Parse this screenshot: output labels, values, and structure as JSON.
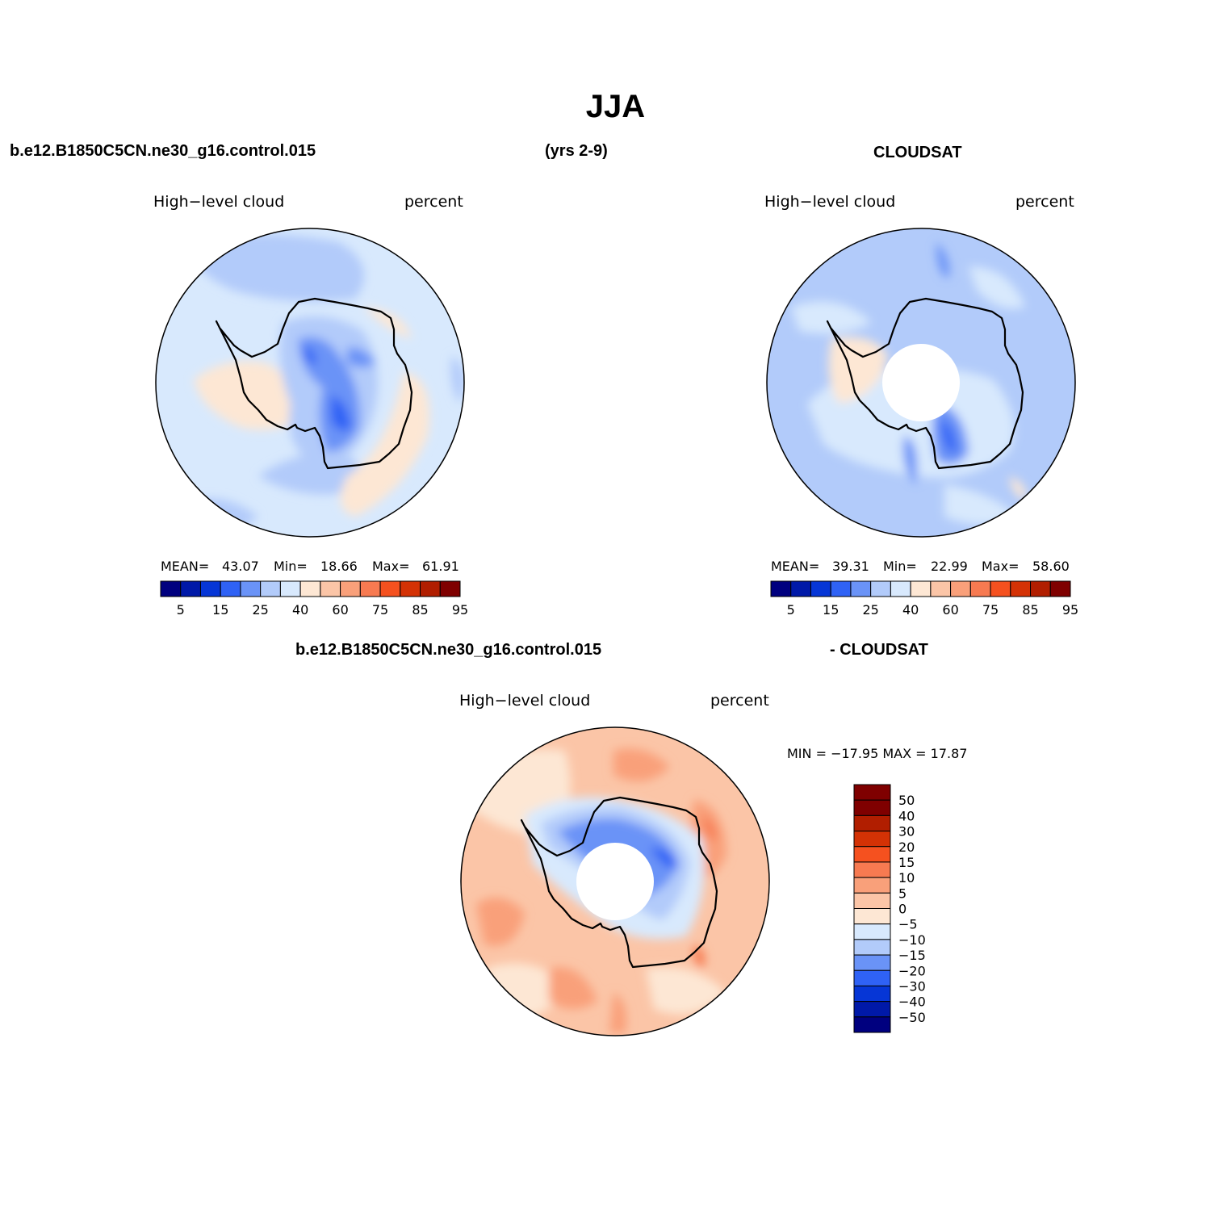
{
  "title": "JJA",
  "header": {
    "case_name": "b.e12.B1850C5CN.ne30_g16.control.015",
    "years": "(yrs 2-9)",
    "obs_name": "CLOUDSAT"
  },
  "panels": [
    {
      "id": "model",
      "variable": "High−level cloud",
      "units": "percent",
      "stats": {
        "mean_label": "MEAN=",
        "mean": "43.07",
        "min_label": "Min=",
        "min": "18.66",
        "max_label": "Max=",
        "max": "61.91"
      }
    },
    {
      "id": "obs",
      "variable": "High−level cloud",
      "units": "percent",
      "stats": {
        "mean_label": "MEAN=",
        "mean": "39.31",
        "min_label": "Min=",
        "min": "22.99",
        "max_label": "Max=",
        "max": "58.60"
      }
    },
    {
      "id": "diff",
      "title_left": "b.e12.B1850C5CN.ne30_g16.control.015",
      "title_right": "- CLOUDSAT",
      "variable": "High−level cloud",
      "units": "percent",
      "minmax": "MIN = −17.95 MAX =   17.87"
    }
  ],
  "colorbar_abs": {
    "colors": [
      "#00007f",
      "#0019a8",
      "#0636d6",
      "#2f62f5",
      "#6a93f7",
      "#b2cbfa",
      "#d8e9fd",
      "#fde7d4",
      "#fbc5a7",
      "#f9a07a",
      "#f77a51",
      "#f5511f",
      "#d43205",
      "#b11e00",
      "#7f0000"
    ],
    "tick_labels": [
      "5",
      "15",
      "25",
      "40",
      "60",
      "75",
      "85",
      "95"
    ]
  },
  "colorbar_diff": {
    "colors": [
      "#7f0000",
      "#b11e00",
      "#d43205",
      "#f5511f",
      "#f77a51",
      "#f9a07a",
      "#fbc5a7",
      "#fde7d4",
      "#d8e9fd",
      "#b2cbfa",
      "#6a93f7",
      "#2f62f5",
      "#0636d6",
      "#0019a8",
      "#00007f"
    ],
    "tick_labels": [
      "50",
      "40",
      "30",
      "20",
      "15",
      "10",
      "5",
      "0",
      "−5",
      "−10",
      "−15",
      "−20",
      "−30",
      "−40",
      "−50"
    ]
  }
}
